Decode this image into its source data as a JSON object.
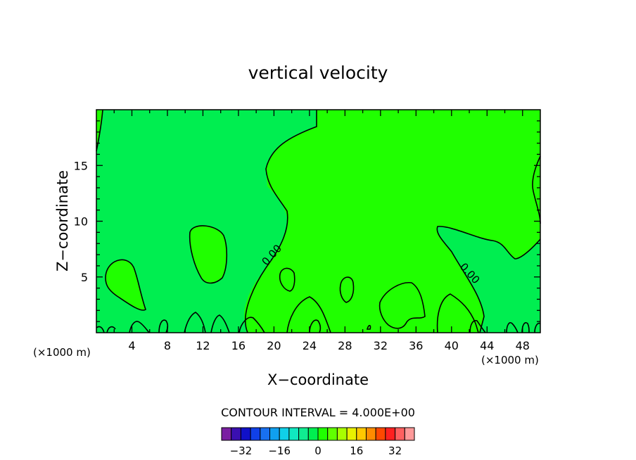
{
  "chart_data": {
    "type": "heatmap",
    "title": "vertical velocity",
    "xlabel": "X−coordinate",
    "ylabel": "Z−coordinate",
    "x_unit_left": "(×1000 m)",
    "x_unit_right": "(×1000 m)",
    "xlim": [
      0,
      50
    ],
    "ylim": [
      0,
      20
    ],
    "x_ticks": [
      4,
      8,
      12,
      16,
      20,
      24,
      28,
      32,
      36,
      40,
      44,
      48
    ],
    "y_ticks": [
      5,
      10,
      15
    ],
    "contour_interval_text": "CONTOUR INTERVAL = 4.000E+00",
    "contour_labels": [
      "0.00",
      "0.00"
    ],
    "colorbar": {
      "levels": [
        -36,
        -32,
        -28,
        -24,
        -20,
        -16,
        -12,
        -8,
        -4,
        0,
        4,
        8,
        12,
        16,
        20,
        24,
        28,
        32,
        36
      ],
      "colors": [
        "#7a1fa2",
        "#3a0fb0",
        "#1010c8",
        "#1040e8",
        "#1870f0",
        "#10a0f0",
        "#10d0e8",
        "#10e8c0",
        "#10ec90",
        "#00ee50",
        "#20ff00",
        "#60ff00",
        "#a8ff00",
        "#e8f000",
        "#ffc800",
        "#ff8c00",
        "#ff4800",
        "#ff2020",
        "#ff6060",
        "#ff9a9a"
      ],
      "tick_labels": [
        "−32",
        "−16",
        "0",
        "16",
        "32"
      ],
      "tick_values": [
        -32,
        -16,
        0,
        16,
        32
      ]
    },
    "field_colors": {
      "background": "#00ee50",
      "positive": "#20ff00"
    }
  }
}
